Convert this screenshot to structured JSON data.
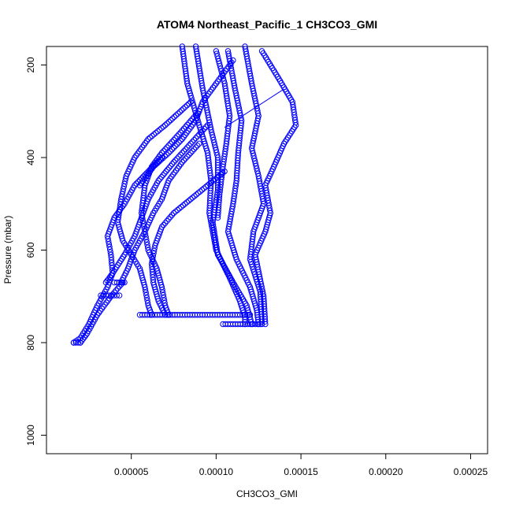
{
  "chart_data": {
    "type": "scatter",
    "title": "ATOM4 Northeast_Pacific_1 CH3CO3_GMI",
    "xlabel": "CH3CO3_GMI",
    "ylabel": "Pressure (mbar)",
    "xlim": [
      0.0,
      0.00026
    ],
    "ylim": [
      1040,
      160
    ],
    "y_reversed": true,
    "grid": false,
    "legend": "none",
    "x_ticks": [
      {
        "value": 5e-05,
        "label": "0.00005"
      },
      {
        "value": 0.0001,
        "label": "0.00010"
      },
      {
        "value": 0.00015,
        "label": "0.00015"
      },
      {
        "value": 0.0002,
        "label": "0.00020"
      },
      {
        "value": 0.00025,
        "label": "0.00025"
      }
    ],
    "y_ticks": [
      {
        "value": 200,
        "label": "200"
      },
      {
        "value": 400,
        "label": "400"
      },
      {
        "value": 600,
        "label": "600"
      },
      {
        "value": 800,
        "label": "800"
      },
      {
        "value": 1000,
        "label": "1000"
      }
    ],
    "color": "#0000ff",
    "series": [
      {
        "points": [
          [
            8e-05,
            160
          ],
          [
            8.3e-05,
            240
          ],
          [
            9e-05,
            330
          ],
          [
            9.5e-05,
            390
          ],
          [
            9.7e-05,
            450
          ],
          [
            9.6e-05,
            520
          ],
          [
            0.0001,
            600
          ],
          [
            0.000108,
            660
          ],
          [
            0.000114,
            710
          ],
          [
            0.000117,
            745
          ],
          [
            0.000117,
            760
          ]
        ]
      },
      {
        "points": [
          [
            8.8e-05,
            160
          ],
          [
            9.2e-05,
            250
          ],
          [
            9.7e-05,
            340
          ],
          [
            0.000101,
            400
          ],
          [
            0.000101,
            470
          ],
          [
            9.8e-05,
            540
          ],
          [
            0.000101,
            610
          ],
          [
            0.00011,
            670
          ],
          [
            0.000118,
            720
          ],
          [
            0.000121,
            760
          ]
        ]
      },
      {
        "points": [
          [
            0.000107,
            170
          ],
          [
            0.000111,
            250
          ],
          [
            0.000115,
            320
          ],
          [
            0.000113,
            390
          ],
          [
            0.000112,
            450
          ],
          [
            0.00011,
            500
          ],
          [
            0.000107,
            560
          ],
          [
            0.000112,
            620
          ],
          [
            0.00012,
            680
          ],
          [
            0.000124,
            730
          ],
          [
            0.000125,
            760
          ]
        ]
      },
      {
        "points": [
          [
            0.000117,
            160
          ],
          [
            0.000121,
            240
          ],
          [
            0.000125,
            310
          ],
          [
            0.000121,
            380
          ],
          [
            0.000125,
            440
          ],
          [
            0.000128,
            500
          ],
          [
            0.000122,
            560
          ],
          [
            0.00012,
            620
          ],
          [
            0.000126,
            690
          ],
          [
            0.000127,
            760
          ]
        ]
      },
      {
        "points": [
          [
            0.000127,
            170
          ],
          [
            0.000137,
            230
          ],
          [
            0.000145,
            280
          ],
          [
            0.000147,
            330
          ],
          [
            0.00014,
            370
          ],
          [
            0.000134,
            420
          ],
          [
            0.000129,
            460
          ],
          [
            0.000132,
            520
          ],
          [
            0.000129,
            560
          ],
          [
            0.000123,
            610
          ],
          [
            0.000128,
            700
          ],
          [
            0.000129,
            760
          ]
        ]
      },
      {
        "points": [
          [
            0.0001,
            170
          ],
          [
            0.000105,
            240
          ],
          [
            0.000108,
            310
          ],
          [
            0.000106,
            370
          ],
          [
            0.000104,
            420
          ],
          [
            0.000102,
            480
          ],
          [
            0.000101,
            530
          ]
        ]
      },
      {
        "points": [
          [
            9.5e-05,
            330
          ],
          [
            8.5e-05,
            370
          ],
          [
            7.5e-05,
            410
          ],
          [
            6.6e-05,
            450
          ],
          [
            6e-05,
            490
          ],
          [
            5.6e-05,
            530
          ],
          [
            5.2e-05,
            570
          ],
          [
            4.6e-05,
            610
          ],
          [
            3.9e-05,
            650
          ],
          [
            3.5e-05,
            670
          ]
        ]
      },
      {
        "points": [
          [
            9e-05,
            300
          ],
          [
            7.8e-05,
            350
          ],
          [
            6.8e-05,
            390
          ],
          [
            6.2e-05,
            420
          ],
          [
            5.8e-05,
            460
          ],
          [
            5.6e-05,
            520
          ],
          [
            5.8e-05,
            560
          ],
          [
            6e-05,
            600
          ],
          [
            6.5e-05,
            640
          ],
          [
            6.8e-05,
            680
          ],
          [
            7e-05,
            720
          ],
          [
            7.2e-05,
            740
          ]
        ]
      },
      {
        "points": [
          [
            8.5e-05,
            280
          ],
          [
            7e-05,
            330
          ],
          [
            6e-05,
            360
          ],
          [
            5.2e-05,
            400
          ],
          [
            4.7e-05,
            440
          ],
          [
            4.4e-05,
            490
          ],
          [
            4.2e-05,
            540
          ],
          [
            4.5e-05,
            580
          ],
          [
            5e-05,
            610
          ],
          [
            5.5e-05,
            640
          ],
          [
            5.8e-05,
            680
          ],
          [
            6e-05,
            720
          ],
          [
            6.2e-05,
            740
          ]
        ]
      },
      {
        "points": [
          [
            6.8e-05,
            400
          ],
          [
            6e-05,
            430
          ],
          [
            5.2e-05,
            460
          ],
          [
            4.6e-05,
            500
          ],
          [
            4e-05,
            530
          ],
          [
            3.6e-05,
            570
          ],
          [
            3.8e-05,
            610
          ],
          [
            3.9e-05,
            650
          ],
          [
            3.6e-05,
            680
          ],
          [
            3e-05,
            720
          ],
          [
            2.5e-05,
            760
          ],
          [
            2e-05,
            790
          ],
          [
            1.6e-05,
            800
          ]
        ]
      },
      {
        "points": [
          [
            9e-05,
            370
          ],
          [
            8e-05,
            410
          ],
          [
            7.2e-05,
            450
          ],
          [
            6.8e-05,
            490
          ],
          [
            6.3e-05,
            520
          ],
          [
            5.8e-05,
            560
          ],
          [
            5.2e-05,
            600
          ],
          [
            4.8e-05,
            640
          ],
          [
            4.4e-05,
            670
          ]
        ]
      },
      {
        "points": [
          [
            0.000105,
            430
          ],
          [
            9.5e-05,
            460
          ],
          [
            8.5e-05,
            490
          ],
          [
            7.5e-05,
            520
          ],
          [
            6.8e-05,
            550
          ],
          [
            6.4e-05,
            590
          ],
          [
            6.2e-05,
            630
          ],
          [
            6.3e-05,
            670
          ],
          [
            6.6e-05,
            710
          ],
          [
            7e-05,
            740
          ]
        ]
      },
      {
        "points": [
          [
            0.00011,
            190
          ],
          [
            0.0001,
            240
          ],
          [
            9.2e-05,
            280
          ],
          [
            8.8e-05,
            320
          ],
          [
            8e-05,
            360
          ],
          [
            7.2e-05,
            390
          ],
          [
            6.3e-05,
            420
          ],
          [
            5.5e-05,
            460
          ]
        ]
      },
      {
        "points": [
          [
            4.5e-05,
            670
          ],
          [
            3.8e-05,
            700
          ],
          [
            3e-05,
            740
          ],
          [
            2.4e-05,
            780
          ],
          [
            2e-05,
            800
          ]
        ]
      },
      {
        "points": [
          [
            1.6e-05,
            800
          ],
          [
            2e-05,
            800
          ]
        ]
      },
      {
        "points": [
          [
            3.2e-05,
            698
          ],
          [
            4.3e-05,
            698
          ]
        ]
      },
      {
        "points": [
          [
            5.5e-05,
            740
          ],
          [
            0.00012,
            740
          ]
        ]
      },
      {
        "points": [
          [
            4e-05,
            670
          ],
          [
            4.6e-05,
            670
          ]
        ]
      },
      {
        "points": [
          [
            0.000104,
            760
          ],
          [
            0.000126,
            760
          ]
        ]
      }
    ],
    "line_segments": [
      [
        [
          0.000105,
          335
        ],
        [
          0.00014,
          252
        ]
      ]
    ]
  }
}
